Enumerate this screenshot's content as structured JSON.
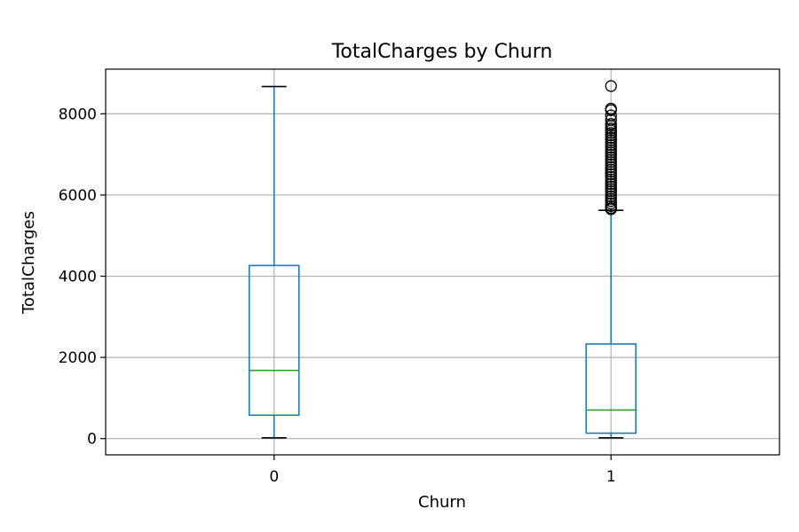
{
  "chart_data": {
    "type": "boxplot",
    "title": "TotalCharges by Churn",
    "xlabel": "Churn",
    "ylabel": "TotalCharges",
    "categories": [
      "0",
      "1"
    ],
    "ylim": [
      -400,
      9100
    ],
    "yticks": [
      0,
      2000,
      4000,
      6000,
      8000
    ],
    "grid": true,
    "boxes": [
      {
        "category": "0",
        "whisker_low": 19,
        "q1": 577,
        "median": 1680,
        "q3": 4264,
        "whisker_high": 8672,
        "outliers": []
      },
      {
        "category": "1",
        "whisker_low": 19,
        "q1": 134,
        "median": 704,
        "q3": 2331,
        "whisker_high": 5624,
        "outliers": [
          8684,
          8127,
          8090,
          7962,
          7856,
          7750,
          7700,
          7640,
          7590,
          7530,
          7470,
          7410,
          7350,
          7290,
          7230,
          7170,
          7110,
          7050,
          6990,
          6930,
          6870,
          6810,
          6750,
          6690,
          6630,
          6570,
          6510,
          6450,
          6390,
          6330,
          6270,
          6210,
          6150,
          6090,
          6030,
          5970,
          5910,
          5850,
          5790,
          5730,
          5680,
          5650
        ]
      }
    ],
    "colors": {
      "box": "#1f77b4",
      "median": "#2ca02c",
      "whisker_cap": "#000000",
      "grid": "#b0b0b0",
      "outlier": "#000000"
    }
  }
}
